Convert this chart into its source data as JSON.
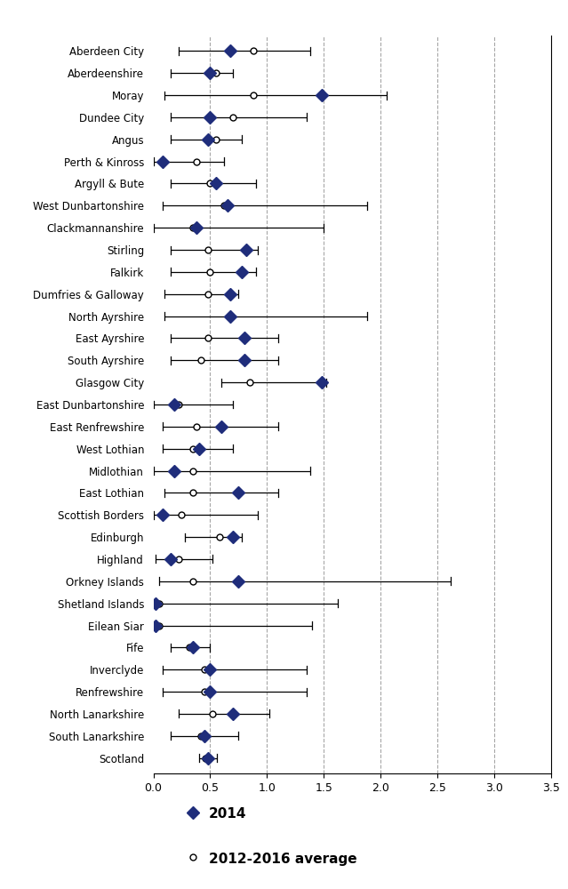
{
  "labels": [
    "Aberdeen City",
    "Aberdeenshire",
    "Moray",
    "Dundee City",
    "Angus",
    "Perth & Kinross",
    "Argyll & Bute",
    "West Dunbartonshire",
    "Clackmannanshire",
    "Stirling",
    "Falkirk",
    "Dumfries & Galloway",
    "North Ayrshire",
    "East Ayrshire",
    "South Ayrshire",
    "Glasgow City",
    "East Dunbartonshire",
    "East Renfrewshire",
    "West Lothian",
    "Midlothian",
    "East Lothian",
    "Scottish Borders",
    "Edinburgh",
    "Highland",
    "Orkney Islands",
    "Shetland Islands",
    "Eilean Siar",
    "Fife",
    "Inverclyde",
    "Renfrewshire",
    "North Lanarkshire",
    "South Lanarkshire",
    "Scotland"
  ],
  "diamond_val": [
    0.68,
    0.5,
    1.48,
    0.5,
    0.48,
    0.08,
    0.55,
    0.65,
    0.38,
    0.82,
    0.78,
    0.68,
    0.68,
    0.8,
    0.8,
    1.48,
    0.18,
    0.6,
    0.4,
    0.18,
    0.75,
    0.08,
    0.7,
    0.15,
    0.75,
    0.02,
    0.02,
    0.35,
    0.5,
    0.5,
    0.7,
    0.45,
    0.48
  ],
  "circle_val": [
    0.88,
    0.55,
    0.88,
    0.7,
    0.55,
    0.38,
    0.5,
    0.62,
    0.35,
    0.48,
    0.5,
    0.48,
    0.68,
    0.48,
    0.42,
    0.85,
    0.22,
    0.38,
    0.35,
    0.35,
    0.35,
    0.25,
    0.58,
    0.22,
    0.35,
    0.05,
    0.05,
    0.32,
    0.45,
    0.45,
    0.52,
    0.42,
    0.46
  ],
  "err_low": [
    0.22,
    0.15,
    0.1,
    0.15,
    0.15,
    0.0,
    0.15,
    0.08,
    0.0,
    0.15,
    0.15,
    0.1,
    0.1,
    0.15,
    0.15,
    0.6,
    0.0,
    0.08,
    0.08,
    0.0,
    0.1,
    0.0,
    0.28,
    0.02,
    0.05,
    0.0,
    0.0,
    0.15,
    0.08,
    0.08,
    0.22,
    0.15,
    0.4
  ],
  "err_high": [
    1.38,
    0.7,
    2.05,
    1.35,
    0.78,
    0.62,
    0.9,
    1.88,
    1.5,
    0.92,
    0.9,
    0.75,
    1.88,
    1.1,
    1.1,
    1.52,
    0.7,
    1.1,
    0.7,
    1.38,
    1.1,
    0.92,
    0.78,
    0.52,
    2.62,
    1.62,
    1.4,
    0.5,
    1.35,
    1.35,
    1.02,
    0.75,
    0.56
  ],
  "diamond_color": "#1f2d7b",
  "xlim": [
    0,
    3.5
  ],
  "xticks": [
    0.0,
    0.5,
    1.0,
    1.5,
    2.0,
    2.5,
    3.0,
    3.5
  ],
  "vlines": [
    0.5,
    1.0,
    1.5,
    2.0,
    2.5,
    3.0
  ],
  "figsize": [
    6.39,
    10.0
  ],
  "dpi": 100
}
